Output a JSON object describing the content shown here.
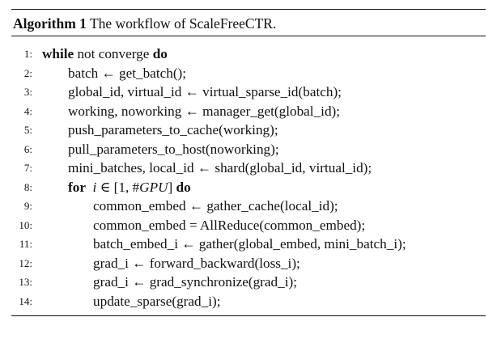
{
  "caption": {
    "label": "Algorithm 1",
    "title": "The workflow of ScaleFreeCTR."
  },
  "lines": [
    {
      "num": "1:",
      "kw": "while",
      "text": "not converge",
      "kw_end": "do"
    },
    {
      "num": "2:",
      "text": "batch ← get_batch();"
    },
    {
      "num": "3:",
      "text": "global_id, virtual_id ← virtual_sparse_id(batch);"
    },
    {
      "num": "4:",
      "text": "working, noworking ← manager_get(global_id);"
    },
    {
      "num": "5:",
      "text": "push_parameters_to_cache(working);"
    },
    {
      "num": "6:",
      "text": "pull_parameters_to_host(noworking);"
    },
    {
      "num": "7:",
      "text": "mini_batches, local_id ← shard(global_id, virtual_id);"
    },
    {
      "num": "8:",
      "kw": "for",
      "var": "i",
      "range_pre": "∈ [1, #",
      "range_it": "GPU",
      "range_post": "]",
      "kw_end": "do"
    },
    {
      "num": "9:",
      "text": "common_embed ← gather_cache(local_id);"
    },
    {
      "num": "10:",
      "text": "common_embed = AllReduce(common_embed);"
    },
    {
      "num": "11:",
      "text": "batch_embed_i ← gather(global_embed, mini_batch_i);"
    },
    {
      "num": "12:",
      "text": "grad_i ← forward_backward(loss_i);"
    },
    {
      "num": "13:",
      "text": "grad_i ← grad_synchronize(grad_i);"
    },
    {
      "num": "14:",
      "text": "update_sparse(grad_i);"
    }
  ]
}
